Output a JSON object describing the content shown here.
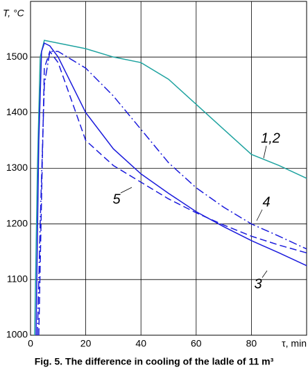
{
  "chart_data": {
    "type": "line",
    "title": "Fig. 5. The difference in cooling of the ladle of 11 m³",
    "y_label": "T, °C",
    "xlim": [
      0,
      100
    ],
    "ylim": [
      1000,
      1600
    ],
    "xticks": [
      0,
      20,
      40,
      60,
      80,
      {
        "value": 100,
        "label": "τ, min"
      }
    ],
    "yticks": [
      1000,
      1100,
      1200,
      1300,
      1400,
      1500
    ],
    "grid": true,
    "series": [
      {
        "name": "1,2",
        "color": "#1fa3a0",
        "dash": "solid",
        "x": [
          1.5,
          2.5,
          3.5,
          5,
          10,
          20,
          30,
          40,
          50,
          60,
          70,
          80,
          90,
          100
        ],
        "values": [
          1000,
          1300,
          1500,
          1530,
          1525,
          1515,
          1500,
          1490,
          1460,
          1415,
          1370,
          1325,
          1305,
          1282
        ]
      },
      {
        "name": "3",
        "color": "#1a1adc",
        "dash": "solid",
        "x": [
          2,
          3,
          4,
          5,
          7,
          10,
          20,
          30,
          40,
          50,
          60,
          70,
          80,
          90,
          100
        ],
        "values": [
          1000,
          1350,
          1510,
          1525,
          1520,
          1500,
          1400,
          1335,
          1290,
          1255,
          1222,
          1195,
          1170,
          1148,
          1125
        ]
      },
      {
        "name": "4",
        "color": "#1a1adc",
        "dash": "dashdot",
        "x": [
          2.5,
          3.5,
          5,
          7,
          10,
          20,
          30,
          40,
          50,
          60,
          70,
          80,
          90,
          100
        ],
        "values": [
          1000,
          1200,
          1450,
          1510,
          1510,
          1480,
          1430,
          1370,
          1310,
          1265,
          1230,
          1200,
          1178,
          1155
        ]
      },
      {
        "name": "5",
        "color": "#1a1adc",
        "dash": "dashed",
        "x": [
          3,
          4,
          5,
          7,
          10,
          15,
          20,
          30,
          40,
          50,
          60,
          70,
          80,
          90,
          100
        ],
        "values": [
          1000,
          1250,
          1480,
          1510,
          1490,
          1420,
          1350,
          1305,
          1275,
          1245,
          1220,
          1198,
          1178,
          1162,
          1148
        ]
      }
    ]
  }
}
